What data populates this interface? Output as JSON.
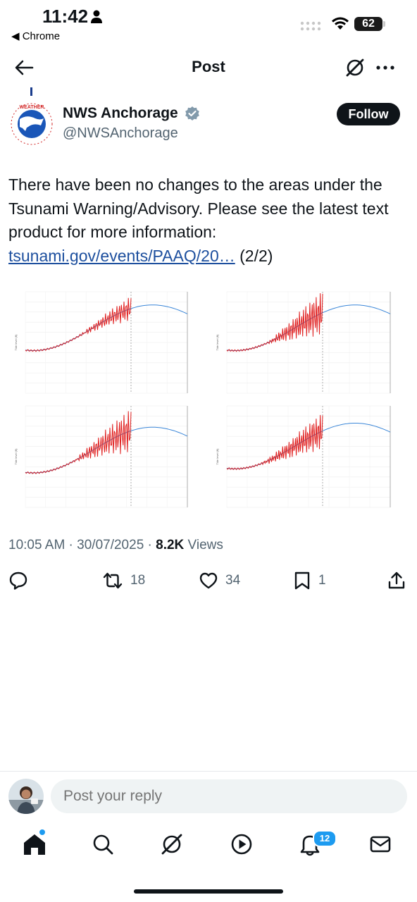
{
  "status_bar": {
    "time": "11:42",
    "back_app": "◀ Chrome",
    "battery": "62"
  },
  "header": {
    "title": "Post"
  },
  "author": {
    "name": "NWS Anchorage",
    "handle": "@NWSAnchorage",
    "avatar_text": "NATIONAL WEATHER SERVICE"
  },
  "follow_label": "Follow",
  "post": {
    "text": "There have been no changes to the areas under the Tsunami Warning/Advisory. Please see the latest text product for more information: ",
    "link_text": "tsunami.gov/events/PAAQ/20…",
    "suffix": " (2/2)"
  },
  "media": {
    "panels": [
      {
        "ylabel": "Tide level (ft)"
      },
      {
        "ylabel": "Tide level (ft)"
      },
      {
        "ylabel": "Tide level (ft)"
      },
      {
        "ylabel": "Tide level (ft)"
      }
    ]
  },
  "meta": {
    "time": "10:05 AM · 30/07/2025 · ",
    "views_count": "8.2K",
    "views_label": " Views"
  },
  "actions": {
    "retweets": "18",
    "likes": "34",
    "bookmarks": "1"
  },
  "reply": {
    "placeholder": "Post your reply"
  },
  "tabbar": {
    "notifications_badge": "12"
  },
  "colors": {
    "accent": "#1d9bf0",
    "link": "#1d4f9e",
    "predicted_line": "#3a86d8",
    "observed_line": "#e02020"
  }
}
